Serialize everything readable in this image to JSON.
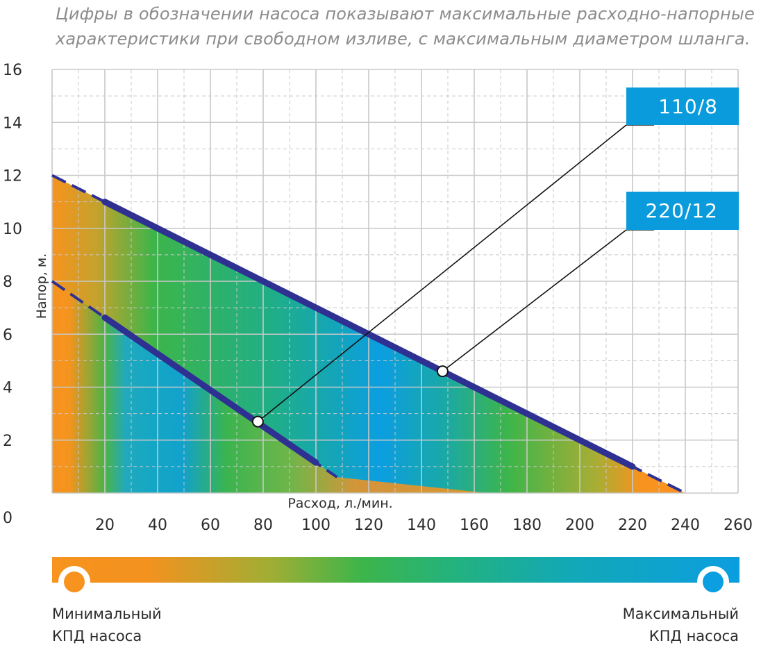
{
  "note": {
    "line1": "Цифры в обозначении насоса показывают максимальные расходно-напорные",
    "line2": "характеристики при свободном изливе, с максимальным диаметром шланга."
  },
  "chart_data": {
    "type": "line",
    "ylabel": "Напор, м.",
    "xlabel": "Расход, л./мин.",
    "ylim": [
      0,
      16
    ],
    "xlim": [
      0,
      260
    ],
    "y_ticks": [
      "16",
      "14",
      "12",
      "10",
      "8",
      "6",
      "4",
      "2",
      "0"
    ],
    "x_ticks": [
      "20",
      "40",
      "60",
      "80",
      "100",
      "120",
      "140",
      "160",
      "180",
      "200",
      "220",
      "240",
      "260"
    ],
    "series": [
      {
        "name": "220/12",
        "x": [
          0,
          240
        ],
        "y": [
          12,
          0
        ],
        "solid_range": [
          20,
          220
        ],
        "marker": {
          "x": 148,
          "y": 4.6
        }
      },
      {
        "name": "110/8",
        "x": [
          0,
          108
        ],
        "y": [
          8,
          0.6
        ],
        "solid_range": [
          20,
          100
        ],
        "marker": {
          "x": 78,
          "y": 2.7
        }
      }
    ],
    "colors": {
      "curve": "#2e3192",
      "grid": "#c8c8c8",
      "tag": "#0a9bdc",
      "min_efficiency": "#f7931e",
      "mid_efficiency": "#3db54a",
      "max_efficiency": "#0b9ee0"
    }
  },
  "tags": {
    "pump_a": "110/8",
    "pump_b": "220/12"
  },
  "legend": {
    "min_line1": "Минимальный",
    "min_line2": "КПД насоса",
    "max_line1": "Максимальный",
    "max_line2": "КПД насоса"
  }
}
